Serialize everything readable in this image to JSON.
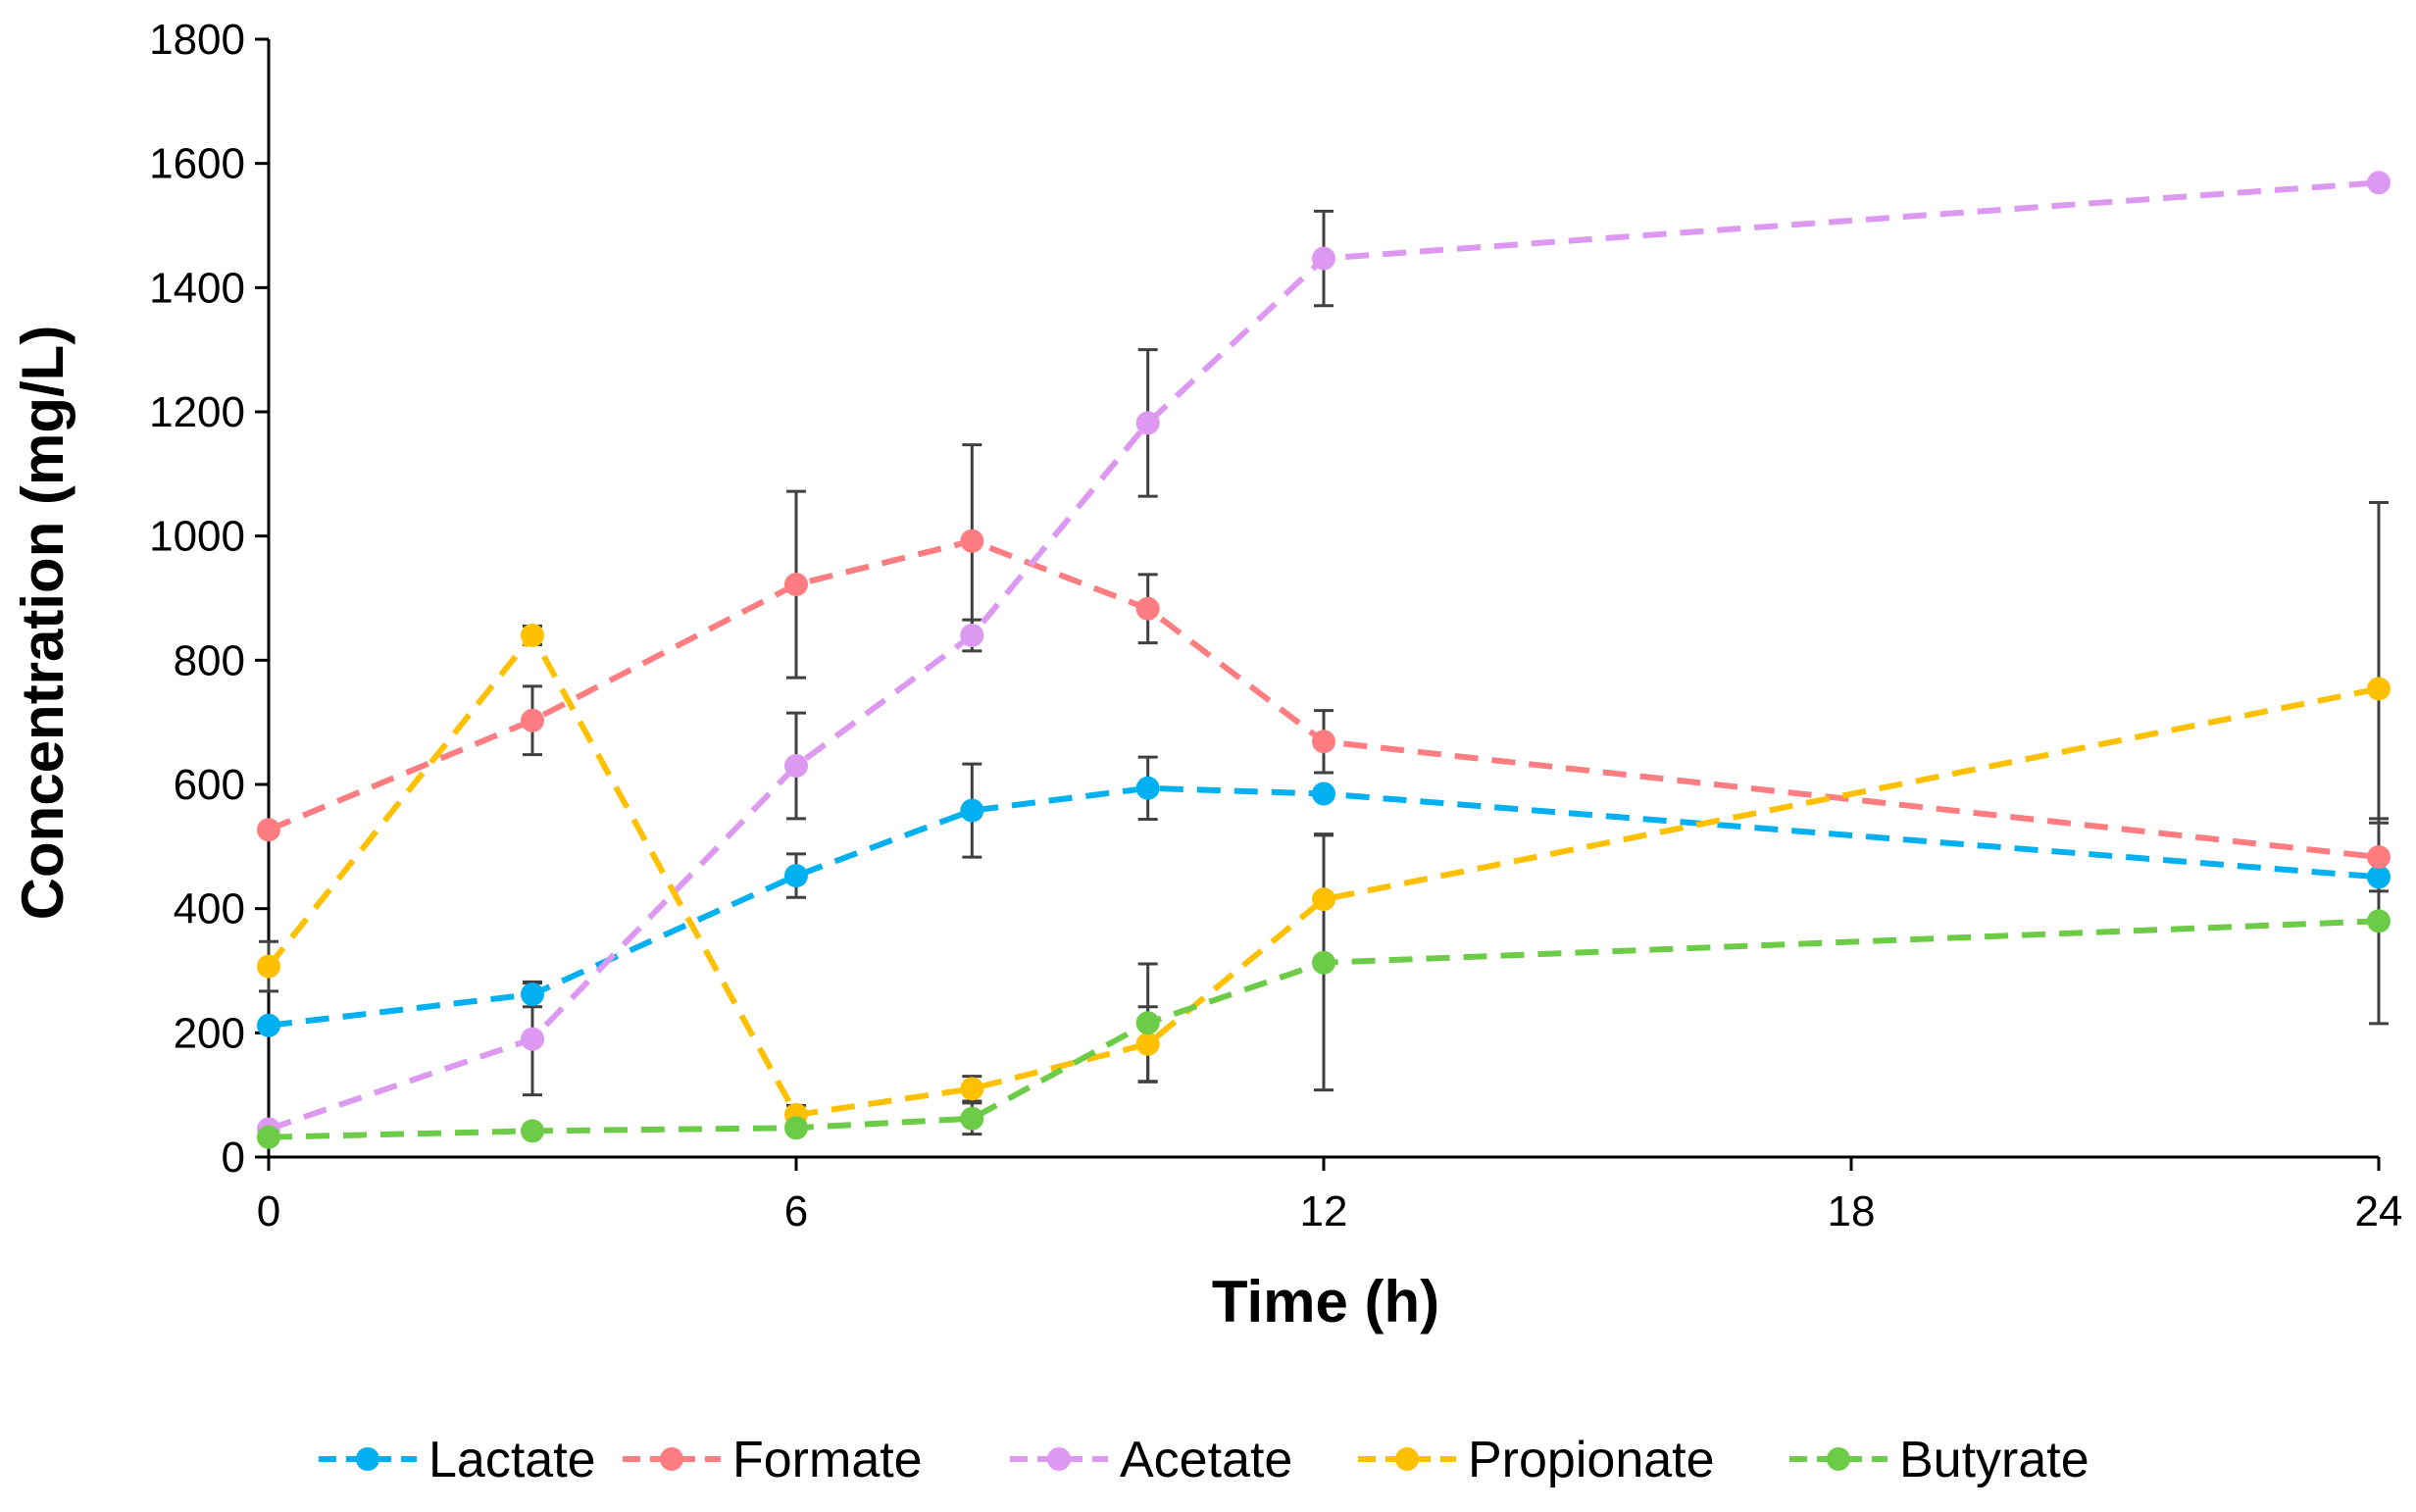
{
  "chart_data": {
    "type": "line",
    "title": "",
    "xlabel": "Time (h)",
    "ylabel": "Concentration (mg/L)",
    "xlim": [
      0,
      24
    ],
    "ylim": [
      0,
      1800
    ],
    "xticks": [
      0,
      6,
      12,
      18,
      24
    ],
    "yticks": [
      0,
      200,
      400,
      600,
      800,
      1000,
      1200,
      1400,
      1600,
      1800
    ],
    "x_tick_labels": [
      "0",
      "6",
      "12",
      "18",
      "24"
    ],
    "y_tick_labels": [
      "0",
      "200",
      "400",
      "600",
      "800",
      "1000",
      "1200",
      "1400",
      "1600",
      "1800"
    ],
    "grid": false,
    "legend_position": "bottom",
    "x": [
      0,
      3,
      6,
      8,
      10,
      12,
      24
    ],
    "series": [
      {
        "name": "Lactate",
        "color": "#00B0F0",
        "values": [
          212,
          262,
          453,
          558,
          594,
          585,
          451
        ],
        "errors": [
          0,
          20,
          35,
          75,
          50,
          0,
          0
        ]
      },
      {
        "name": "Formate",
        "color": "#FF7C80",
        "values": [
          527,
          703,
          922,
          992,
          883,
          669,
          483
        ],
        "errors": [
          0,
          55,
          150,
          155,
          55,
          50,
          55
        ]
      },
      {
        "name": "Acetate",
        "color": "#DD99F2",
        "values": [
          45,
          190,
          630,
          840,
          1182,
          1447,
          1569
        ],
        "errors": [
          0,
          90,
          85,
          25,
          118,
          76,
          0
        ]
      },
      {
        "name": "Propionate",
        "color": "#FFC000",
        "values": [
          307,
          840,
          68,
          110,
          182,
          415,
          754
        ],
        "errors": [
          40,
          15,
          15,
          20,
          60,
          105,
          300
        ]
      },
      {
        "name": "Butyrate",
        "color": "#6DCC47",
        "values": [
          32,
          42,
          47,
          62,
          216,
          313,
          380
        ],
        "errors": [
          0,
          0,
          0,
          25,
          95,
          205,
          165
        ]
      }
    ]
  }
}
